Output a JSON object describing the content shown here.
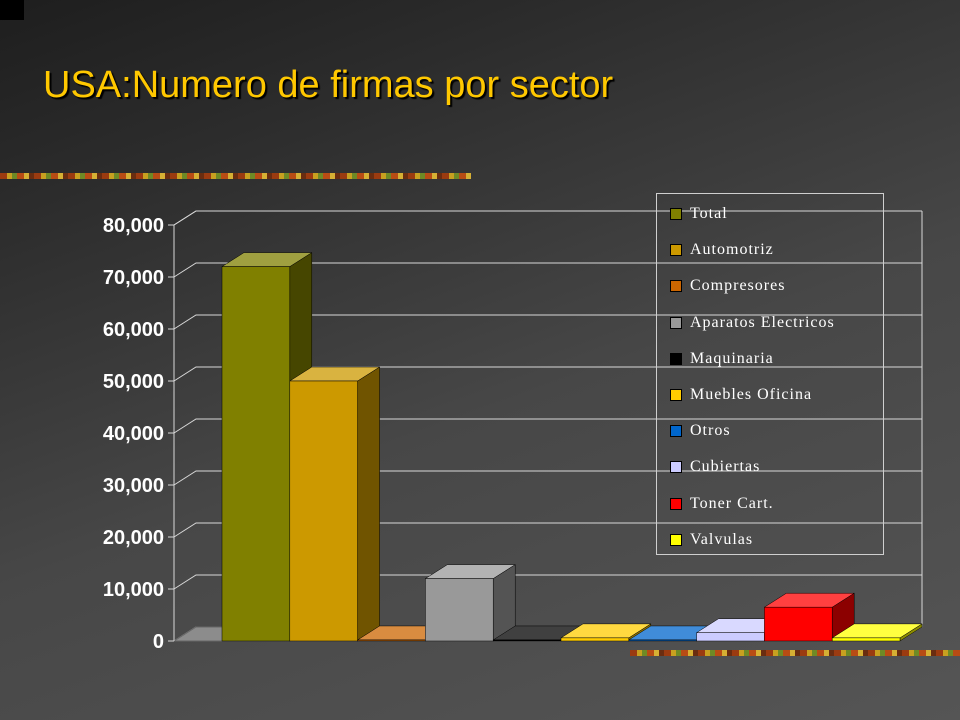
{
  "slide": {
    "title": "USA:Numero de firmas por sector"
  },
  "chart_data": {
    "type": "bar",
    "title": "",
    "xlabel": "",
    "ylabel": "",
    "ylim": [
      0,
      80000
    ],
    "yticks": [
      "0",
      "10,000",
      "20,000",
      "30,000",
      "40,000",
      "50,000",
      "60,000",
      "70,000",
      "80,000"
    ],
    "grid": true,
    "three_d": true,
    "legend_position": "right",
    "series": [
      {
        "name": "Total",
        "value": 72000,
        "color": "#808000"
      },
      {
        "name": "Automotriz",
        "value": 50000,
        "color": "#cc9900"
      },
      {
        "name": "Compresores",
        "value": 200,
        "color": "#cc6600"
      },
      {
        "name": "Aparatos Electricos",
        "value": 12000,
        "color": "#999999"
      },
      {
        "name": "Maquinaria",
        "value": 200,
        "color": "#000000"
      },
      {
        "name": "Muebles  Oficina",
        "value": 600,
        "color": "#ffcc00"
      },
      {
        "name": "Otros",
        "value": 200,
        "color": "#0066cc"
      },
      {
        "name": "Cubiertas",
        "value": 1600,
        "color": "#ccccff"
      },
      {
        "name": "Toner Cart.",
        "value": 6500,
        "color": "#ff0000"
      },
      {
        "name": "Valvulas",
        "value": 600,
        "color": "#ffff00"
      }
    ]
  }
}
